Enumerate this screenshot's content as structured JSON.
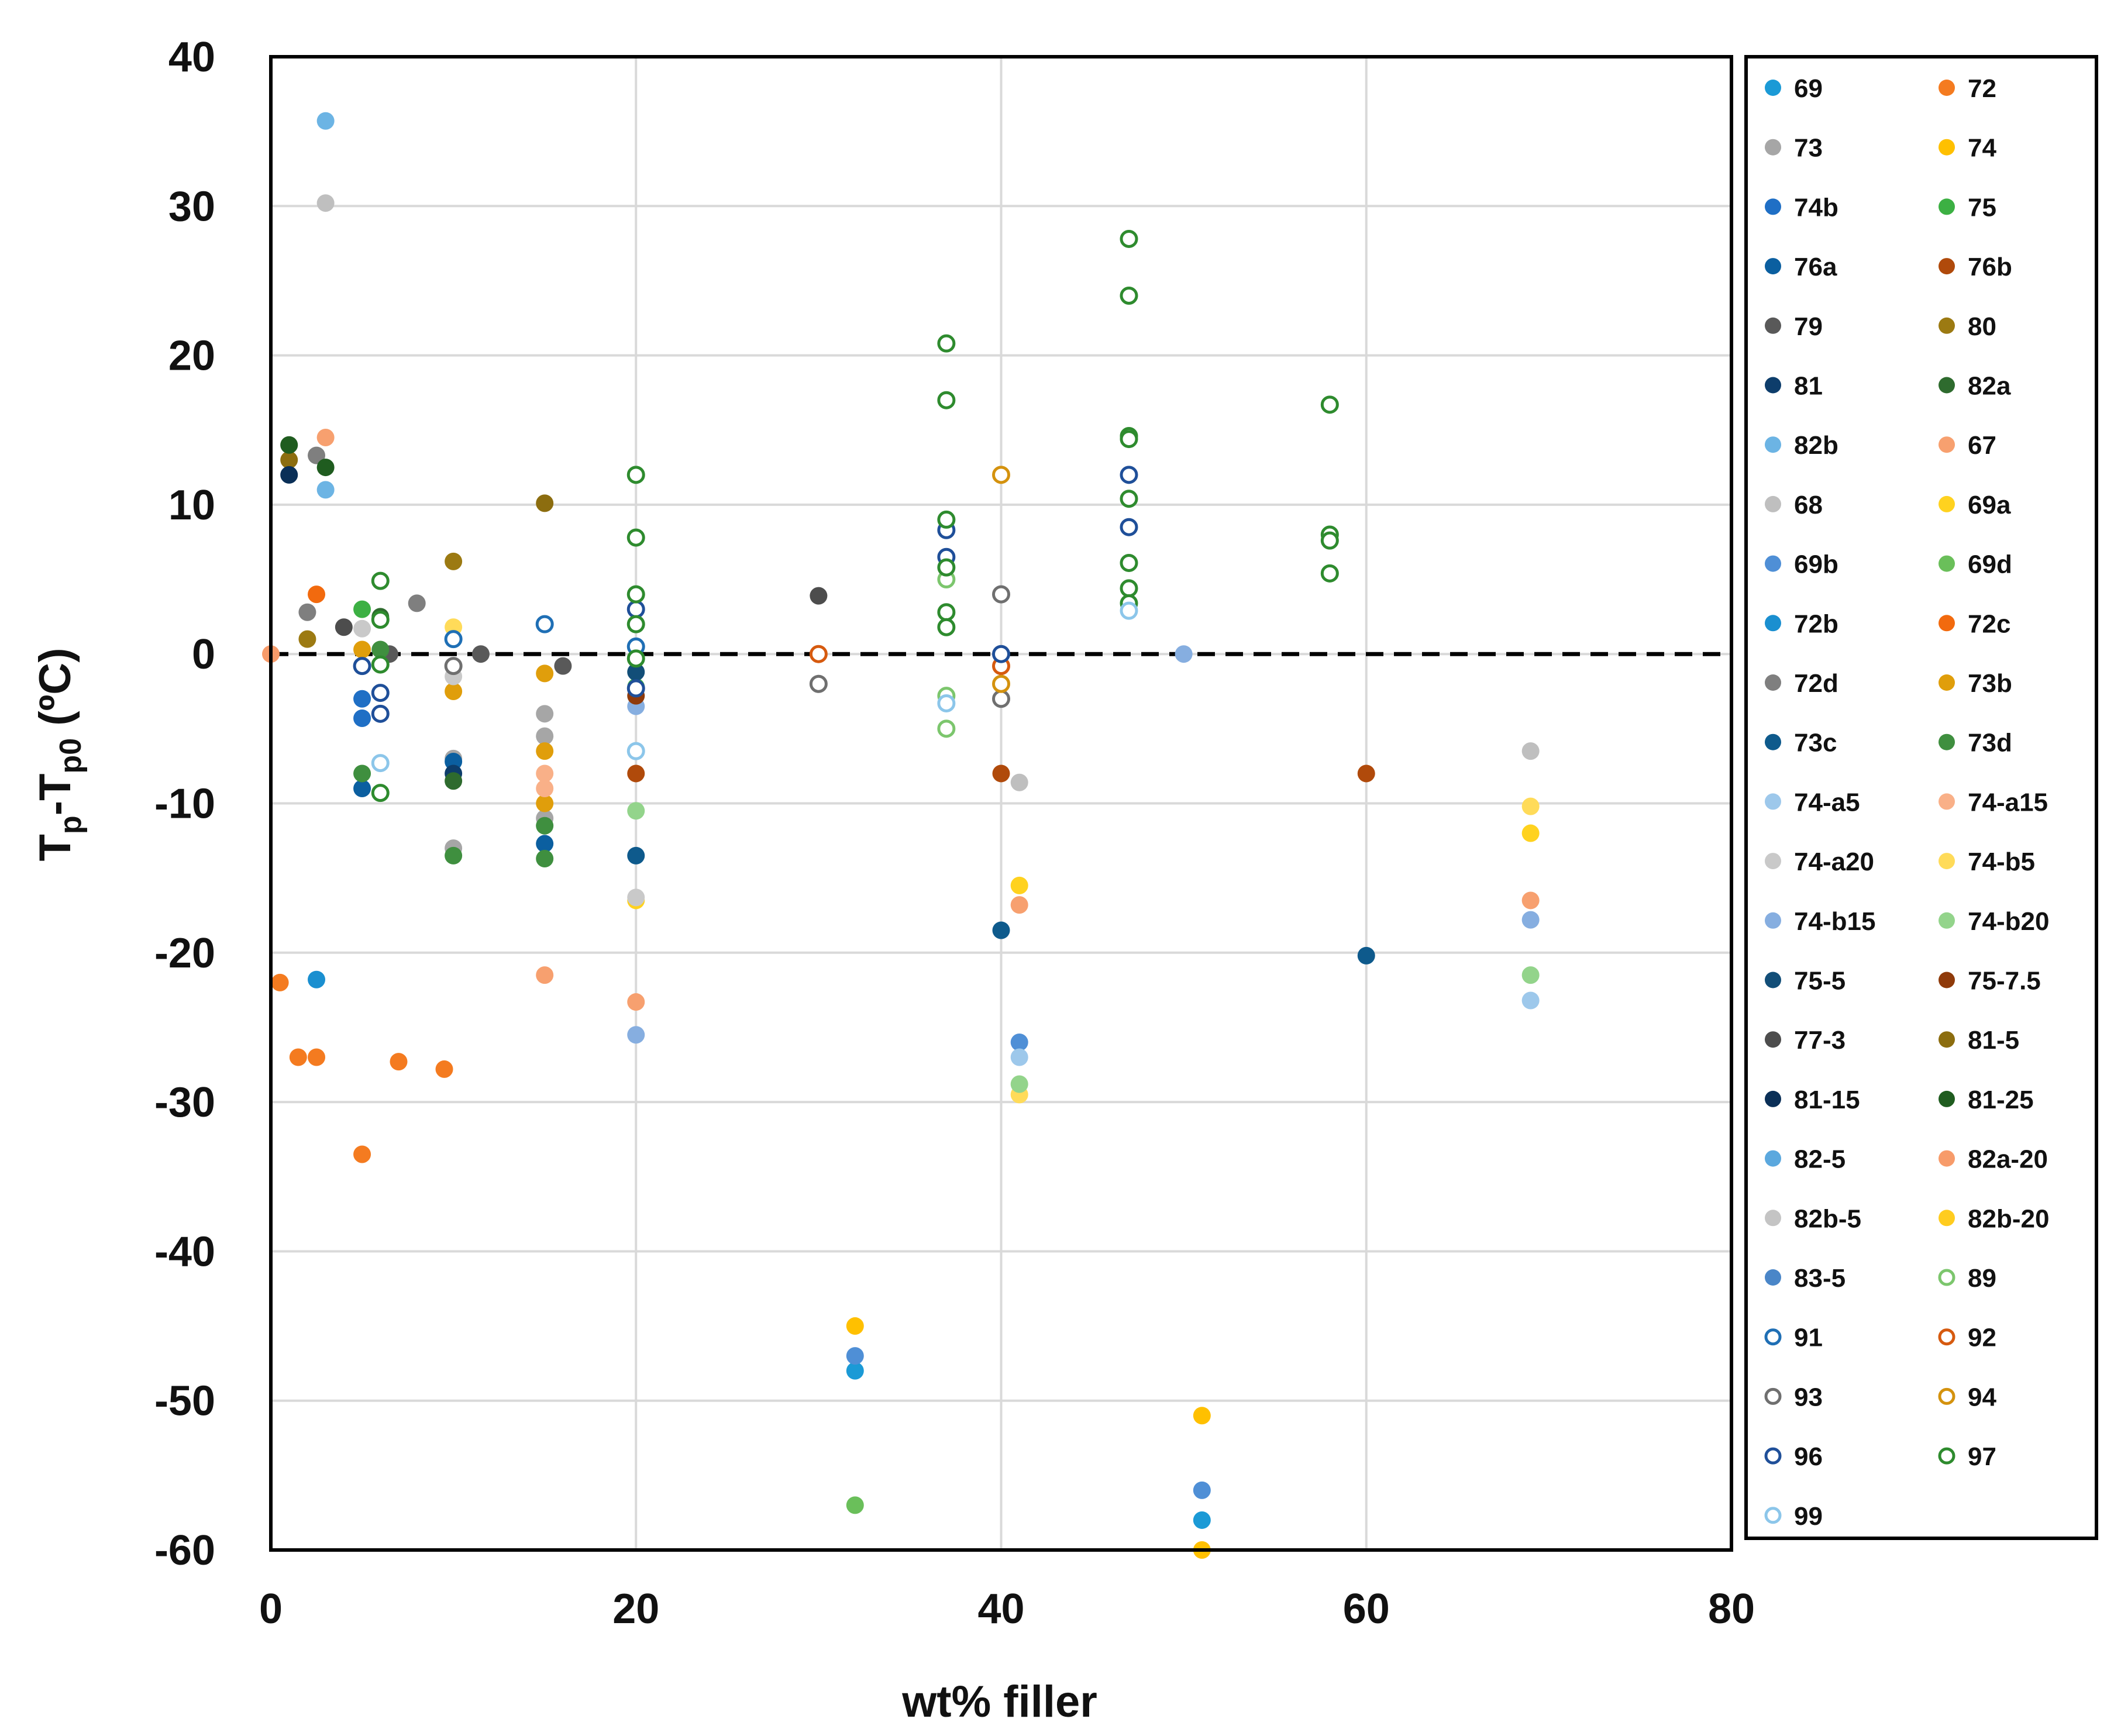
{
  "chart_data": {
    "type": "scatter",
    "xlabel": "wt% filler",
    "ylabel_main": "T",
    "ylabel_sub1": "p",
    "ylabel_mid": "-T",
    "ylabel_sub2": "p0",
    "ylabel_unit": " (ºC)",
    "xlim": [
      0,
      80
    ],
    "ylim": [
      -60,
      40
    ],
    "xticks": [
      0,
      20,
      40,
      60,
      80
    ],
    "yticks": [
      40,
      30,
      20,
      10,
      0,
      -10,
      -20,
      -30,
      -40,
      -50,
      -60
    ],
    "grid": true,
    "reference_line": {
      "y": 0,
      "style": "dashed"
    },
    "legend_position": "right",
    "series": [
      {
        "name": "69",
        "color": "#1b9ad6",
        "filled": true,
        "points": [
          [
            32,
            -48
          ],
          [
            51,
            -58
          ]
        ]
      },
      {
        "name": "72",
        "color": "#f47b20",
        "filled": true,
        "points": [
          [
            0.5,
            -22
          ],
          [
            1.5,
            -27
          ],
          [
            2.5,
            -27
          ],
          [
            5,
            -33.5
          ],
          [
            7,
            -27.3
          ],
          [
            9.5,
            -27.8
          ]
        ]
      },
      {
        "name": "73",
        "color": "#a6a6a6",
        "filled": true,
        "points": [
          [
            10,
            -7
          ],
          [
            10,
            -13
          ],
          [
            15,
            -5.5
          ],
          [
            15,
            -4
          ],
          [
            15,
            -11
          ]
        ]
      },
      {
        "name": "74",
        "color": "#ffc000",
        "filled": true,
        "points": [
          [
            51,
            -51
          ],
          [
            51,
            -60
          ],
          [
            32,
            -45
          ]
        ]
      },
      {
        "name": "74b",
        "color": "#1f6fc5",
        "filled": true,
        "points": [
          [
            5,
            -3
          ],
          [
            5,
            -4.3
          ]
        ]
      },
      {
        "name": "75",
        "color": "#3cb043",
        "filled": true,
        "points": [
          [
            20,
            -2.2
          ],
          [
            5,
            3
          ]
        ]
      },
      {
        "name": "76a",
        "color": "#0b5fa0",
        "filled": true,
        "points": [
          [
            5,
            -9
          ],
          [
            10,
            -7.2
          ],
          [
            15,
            -12.7
          ]
        ]
      },
      {
        "name": "76b",
        "color": "#b04a0b",
        "filled": true,
        "points": [
          [
            20,
            -8
          ],
          [
            60,
            -8
          ],
          [
            40,
            -8
          ]
        ]
      },
      {
        "name": "79",
        "color": "#595959",
        "filled": true,
        "points": [
          [
            6.5,
            0
          ],
          [
            11.5,
            0
          ],
          [
            16,
            -0.8
          ]
        ]
      },
      {
        "name": "80",
        "color": "#9c7a12",
        "filled": true,
        "points": [
          [
            2,
            1
          ],
          [
            10,
            6.2
          ]
        ]
      },
      {
        "name": "81",
        "color": "#0d3d6b",
        "filled": true,
        "points": [
          [
            10,
            -8
          ]
        ]
      },
      {
        "name": "82a",
        "color": "#2e6b2e",
        "filled": true,
        "points": [
          [
            10,
            -8.5
          ],
          [
            6,
            2.5
          ]
        ]
      },
      {
        "name": "82b",
        "color": "#6cb4e4",
        "filled": true,
        "points": [
          [
            3,
            11
          ],
          [
            3,
            35.7
          ]
        ]
      },
      {
        "name": "67",
        "color": "#f7a06f",
        "filled": true,
        "points": [
          [
            3,
            14.5
          ],
          [
            15,
            -21.5
          ],
          [
            20,
            -23.3
          ],
          [
            41,
            -16.8
          ],
          [
            69,
            -16.5
          ]
        ]
      },
      {
        "name": "68",
        "color": "#bfbfbf",
        "filled": true,
        "points": [
          [
            3,
            30.2
          ],
          [
            41,
            -8.6
          ],
          [
            69,
            -6.5
          ]
        ]
      },
      {
        "name": "69a",
        "color": "#ffd21f",
        "filled": true,
        "points": [
          [
            41,
            -15.5
          ],
          [
            69,
            -12
          ],
          [
            20,
            -16.5
          ]
        ]
      },
      {
        "name": "69b",
        "color": "#4f8fd6",
        "filled": true,
        "points": [
          [
            32,
            -47
          ],
          [
            51,
            -56
          ],
          [
            41,
            -26
          ]
        ]
      },
      {
        "name": "69d",
        "color": "#6abf5a",
        "filled": true,
        "points": [
          [
            32,
            -57
          ]
        ]
      },
      {
        "name": "72b",
        "color": "#1a8fd0",
        "filled": true,
        "points": [
          [
            2.5,
            -21.8
          ]
        ]
      },
      {
        "name": "72c",
        "color": "#f26a0e",
        "filled": true,
        "points": [
          [
            2.5,
            4
          ]
        ]
      },
      {
        "name": "72d",
        "color": "#7f7f7f",
        "filled": true,
        "points": [
          [
            2.5,
            13.3
          ],
          [
            2,
            2.8
          ],
          [
            8,
            3.4
          ],
          [
            20,
            4
          ]
        ]
      },
      {
        "name": "73b",
        "color": "#e09e0b",
        "filled": true,
        "points": [
          [
            5,
            0.3
          ],
          [
            10,
            -2.5
          ],
          [
            15,
            -1.3
          ],
          [
            15,
            -6.5
          ],
          [
            15,
            -10
          ]
        ]
      },
      {
        "name": "73c",
        "color": "#0e5a8c",
        "filled": true,
        "points": [
          [
            20,
            -13.5
          ],
          [
            40,
            -18.5
          ],
          [
            60,
            -20.2
          ]
        ]
      },
      {
        "name": "73d",
        "color": "#3f8f3f",
        "filled": true,
        "points": [
          [
            5,
            -8
          ],
          [
            10,
            -13.5
          ],
          [
            15,
            -13.7
          ],
          [
            15,
            -11.5
          ],
          [
            6,
            0.3
          ]
        ]
      },
      {
        "name": "74-a5",
        "color": "#9dc8eb",
        "filled": true,
        "points": [
          [
            41,
            -27
          ],
          [
            69,
            -23.2
          ]
        ]
      },
      {
        "name": "74-a15",
        "color": "#f9b088",
        "filled": true,
        "points": [
          [
            15,
            -8
          ],
          [
            15,
            -9
          ]
        ]
      },
      {
        "name": "74-a20",
        "color": "#c9c9c9",
        "filled": true,
        "points": [
          [
            20,
            -16.3
          ],
          [
            5,
            1.7
          ],
          [
            10,
            -1.5
          ]
        ]
      },
      {
        "name": "74-b5",
        "color": "#ffdb59",
        "filled": true,
        "points": [
          [
            41,
            -29.5
          ],
          [
            69,
            -10.2
          ],
          [
            10,
            1.8
          ]
        ]
      },
      {
        "name": "74-b15",
        "color": "#86aee0",
        "filled": true,
        "points": [
          [
            20,
            -25.5
          ],
          [
            69,
            -17.8
          ],
          [
            20,
            -3.5
          ],
          [
            50,
            0
          ]
        ]
      },
      {
        "name": "74-b20",
        "color": "#93d48b",
        "filled": true,
        "points": [
          [
            20,
            -10.5
          ],
          [
            41,
            -28.8
          ],
          [
            69,
            -21.5
          ]
        ]
      },
      {
        "name": "75-5",
        "color": "#124e78",
        "filled": true,
        "points": [
          [
            20,
            -1.2
          ]
        ]
      },
      {
        "name": "75-7.5",
        "color": "#8f3a0a",
        "filled": true,
        "points": [
          [
            20,
            -2.8
          ]
        ]
      },
      {
        "name": "77-3",
        "color": "#4d4d4d",
        "filled": true,
        "points": [
          [
            4,
            1.8
          ],
          [
            30,
            3.9
          ]
        ]
      },
      {
        "name": "81-5",
        "color": "#8c6d0f",
        "filled": true,
        "points": [
          [
            1,
            13
          ],
          [
            15,
            10.1
          ]
        ]
      },
      {
        "name": "81-15",
        "color": "#0a2f57",
        "filled": true,
        "points": [
          [
            1,
            12
          ]
        ]
      },
      {
        "name": "81-25",
        "color": "#1f5c1f",
        "filled": true,
        "points": [
          [
            1,
            14
          ],
          [
            3,
            12.5
          ]
        ]
      },
      {
        "name": "82-5",
        "color": "#5ba8de",
        "filled": true,
        "points": []
      },
      {
        "name": "82a-20",
        "color": "#f79b6a",
        "filled": true,
        "points": [
          [
            0,
            0
          ]
        ]
      },
      {
        "name": "82b-5",
        "color": "#c4c4c4",
        "filled": true,
        "points": []
      },
      {
        "name": "82b-20",
        "color": "#ffcc1f",
        "filled": true,
        "points": []
      },
      {
        "name": "83-5",
        "color": "#4a86c8",
        "filled": true,
        "points": []
      },
      {
        "name": "89",
        "color": "#7cc66d",
        "filled": false,
        "points": [
          [
            37,
            -2.8
          ],
          [
            37,
            -5
          ],
          [
            37,
            5
          ]
        ]
      },
      {
        "name": "91",
        "color": "#1f6fb5",
        "filled": false,
        "points": [
          [
            15,
            2
          ],
          [
            10,
            1
          ],
          [
            20,
            0.5
          ]
        ]
      },
      {
        "name": "92",
        "color": "#d65a0f",
        "filled": false,
        "points": [
          [
            30,
            0
          ],
          [
            40,
            -0.8
          ]
        ]
      },
      {
        "name": "93",
        "color": "#6f6f6f",
        "filled": false,
        "points": [
          [
            30,
            -2
          ],
          [
            40,
            4
          ],
          [
            40,
            -3
          ],
          [
            10,
            -0.8
          ]
        ]
      },
      {
        "name": "94",
        "color": "#d4920e",
        "filled": false,
        "points": [
          [
            40,
            12
          ],
          [
            40,
            -2
          ]
        ]
      },
      {
        "name": "96",
        "color": "#1f4f99",
        "filled": false,
        "points": [
          [
            5,
            -0.8
          ],
          [
            6,
            -2.6
          ],
          [
            6,
            -4
          ],
          [
            20,
            3
          ],
          [
            20,
            -2.3
          ],
          [
            37,
            6.5
          ],
          [
            37,
            8.3
          ],
          [
            47,
            12
          ],
          [
            47,
            8.5
          ],
          [
            40,
            0
          ]
        ]
      },
      {
        "name": "97",
        "color": "#2e8b2e",
        "filled": false,
        "points": [
          [
            6,
            4.9
          ],
          [
            6,
            2.3
          ],
          [
            6,
            -0.7
          ],
          [
            6,
            -9.3
          ],
          [
            20,
            12
          ],
          [
            20,
            7.8
          ],
          [
            20,
            4
          ],
          [
            20,
            2
          ],
          [
            20,
            -0.3
          ],
          [
            37,
            20.8
          ],
          [
            37,
            17
          ],
          [
            37,
            9
          ],
          [
            37,
            5.8
          ],
          [
            37,
            2.8
          ],
          [
            37,
            1.8
          ],
          [
            47,
            27.8
          ],
          [
            47,
            24
          ],
          [
            47,
            14.6
          ],
          [
            47,
            14.4
          ],
          [
            47,
            10.4
          ],
          [
            47,
            6.1
          ],
          [
            47,
            4.4
          ],
          [
            47,
            3.4
          ],
          [
            58,
            16.7
          ],
          [
            58,
            8
          ],
          [
            58,
            7.6
          ],
          [
            58,
            5.4
          ]
        ]
      },
      {
        "name": "99",
        "color": "#8cc6ea",
        "filled": false,
        "points": [
          [
            6,
            -7.3
          ],
          [
            20,
            -6.5
          ],
          [
            37,
            -3.3
          ],
          [
            47,
            2.9
          ]
        ]
      }
    ]
  }
}
